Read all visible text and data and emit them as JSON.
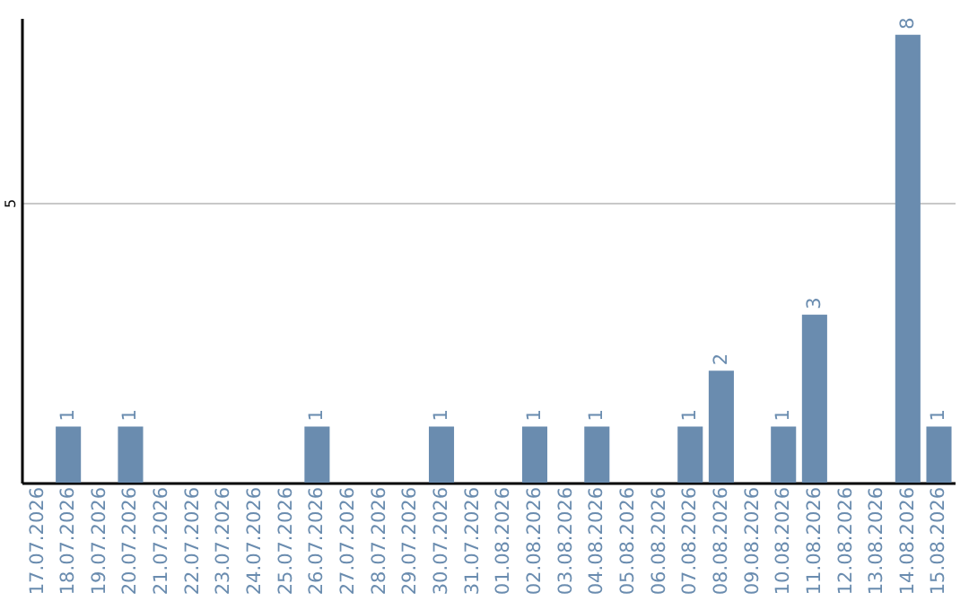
{
  "chart_data": {
    "type": "bar",
    "categories": [
      "17.07.2026",
      "18.07.2026",
      "19.07.2026",
      "20.07.2026",
      "21.07.2026",
      "22.07.2026",
      "23.07.2026",
      "24.07.2026",
      "25.07.2026",
      "26.07.2026",
      "27.07.2026",
      "28.07.2026",
      "29.07.2026",
      "30.07.2026",
      "31.07.2026",
      "01.08.2026",
      "02.08.2026",
      "03.08.2026",
      "04.08.2026",
      "05.08.2026",
      "06.08.2026",
      "07.08.2026",
      "08.08.2026",
      "09.08.2026",
      "10.08.2026",
      "11.08.2026",
      "12.08.2026",
      "13.08.2026",
      "14.08.2026",
      "15.08.2026"
    ],
    "values": [
      0,
      1,
      0,
      1,
      0,
      0,
      0,
      0,
      0,
      1,
      0,
      0,
      0,
      1,
      0,
      0,
      1,
      0,
      1,
      0,
      0,
      1,
      2,
      0,
      1,
      3,
      0,
      0,
      8,
      1
    ],
    "value_labels": [
      null,
      "1",
      null,
      "1",
      null,
      null,
      null,
      null,
      null,
      "1",
      null,
      null,
      null,
      "1",
      null,
      null,
      "1",
      null,
      "1",
      null,
      null,
      "1",
      "2",
      null,
      "1",
      "3",
      null,
      null,
      "8",
      "1"
    ],
    "color": "#6a8caf",
    "ylim": [
      0,
      8.3
    ],
    "yticks": [
      5
    ],
    "grid": "y"
  }
}
